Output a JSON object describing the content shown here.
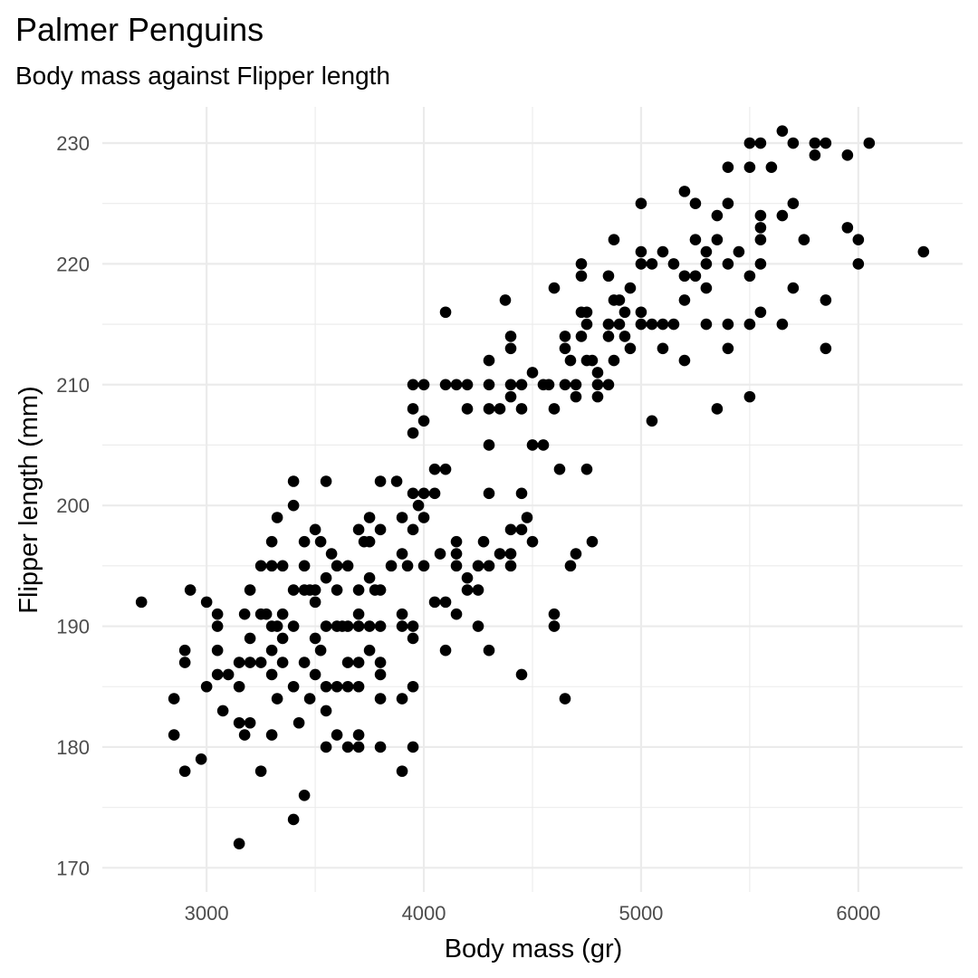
{
  "chart_data": {
    "type": "scatter",
    "title": "Palmer Penguins",
    "subtitle": "Body mass against Flipper length",
    "xlabel": "Body mass (gr)",
    "ylabel": "Flipper length (mm)",
    "xlim": [
      2520,
      6480
    ],
    "ylim": [
      168,
      233
    ],
    "x_ticks": [
      3000,
      4000,
      5000,
      6000
    ],
    "x_tick_labels": [
      "3000",
      "4000",
      "5000",
      "6000"
    ],
    "y_ticks": [
      170,
      180,
      190,
      200,
      210,
      220,
      230
    ],
    "y_tick_labels": [
      "170",
      "180",
      "190",
      "200",
      "210",
      "220",
      "230"
    ],
    "grid": true,
    "legend": "none",
    "point_color": "#000000",
    "points": [
      [
        2700,
        192
      ],
      [
        2850,
        184
      ],
      [
        2850,
        181
      ],
      [
        2900,
        188
      ],
      [
        2900,
        187
      ],
      [
        2900,
        178
      ],
      [
        2925,
        193
      ],
      [
        2975,
        179
      ],
      [
        3000,
        185
      ],
      [
        3000,
        192
      ],
      [
        3050,
        191
      ],
      [
        3050,
        190
      ],
      [
        3050,
        188
      ],
      [
        3050,
        186
      ],
      [
        3075,
        183
      ],
      [
        3100,
        186
      ],
      [
        3150,
        187
      ],
      [
        3150,
        185
      ],
      [
        3150,
        182
      ],
      [
        3150,
        172
      ],
      [
        3175,
        191
      ],
      [
        3175,
        181
      ],
      [
        3200,
        187
      ],
      [
        3200,
        182
      ],
      [
        3200,
        189
      ],
      [
        3200,
        193
      ],
      [
        3250,
        195
      ],
      [
        3250,
        191
      ],
      [
        3250,
        187
      ],
      [
        3250,
        178
      ],
      [
        3275,
        191
      ],
      [
        3300,
        195
      ],
      [
        3300,
        190
      ],
      [
        3300,
        188
      ],
      [
        3300,
        186
      ],
      [
        3300,
        181
      ],
      [
        3300,
        197
      ],
      [
        3325,
        199
      ],
      [
        3325,
        190
      ],
      [
        3325,
        184
      ],
      [
        3350,
        195
      ],
      [
        3350,
        189
      ],
      [
        3350,
        187
      ],
      [
        3350,
        191
      ],
      [
        3400,
        202
      ],
      [
        3400,
        200
      ],
      [
        3400,
        193
      ],
      [
        3400,
        190
      ],
      [
        3400,
        185
      ],
      [
        3400,
        174
      ],
      [
        3425,
        182
      ],
      [
        3450,
        197
      ],
      [
        3450,
        195
      ],
      [
        3450,
        193
      ],
      [
        3450,
        187
      ],
      [
        3450,
        176
      ],
      [
        3475,
        193
      ],
      [
        3475,
        184
      ],
      [
        3500,
        198
      ],
      [
        3500,
        193
      ],
      [
        3500,
        192
      ],
      [
        3500,
        189
      ],
      [
        3500,
        186
      ],
      [
        3525,
        197
      ],
      [
        3525,
        188
      ],
      [
        3550,
        202
      ],
      [
        3550,
        194
      ],
      [
        3550,
        190
      ],
      [
        3550,
        185
      ],
      [
        3550,
        183
      ],
      [
        3550,
        180
      ],
      [
        3575,
        196
      ],
      [
        3600,
        195
      ],
      [
        3600,
        190
      ],
      [
        3600,
        193
      ],
      [
        3600,
        185
      ],
      [
        3600,
        181
      ],
      [
        3625,
        190
      ],
      [
        3650,
        195
      ],
      [
        3650,
        190
      ],
      [
        3650,
        187
      ],
      [
        3650,
        185
      ],
      [
        3650,
        180
      ],
      [
        3700,
        198
      ],
      [
        3700,
        193
      ],
      [
        3700,
        191
      ],
      [
        3700,
        190
      ],
      [
        3700,
        187
      ],
      [
        3700,
        185
      ],
      [
        3700,
        181
      ],
      [
        3700,
        180
      ],
      [
        3725,
        197
      ],
      [
        3750,
        199
      ],
      [
        3750,
        197
      ],
      [
        3750,
        194
      ],
      [
        3750,
        190
      ],
      [
        3750,
        188
      ],
      [
        3775,
        193
      ],
      [
        3800,
        202
      ],
      [
        3800,
        198
      ],
      [
        3800,
        193
      ],
      [
        3800,
        190
      ],
      [
        3800,
        187
      ],
      [
        3800,
        186
      ],
      [
        3800,
        184
      ],
      [
        3800,
        180
      ],
      [
        3850,
        195
      ],
      [
        3875,
        202
      ],
      [
        3900,
        199
      ],
      [
        3900,
        196
      ],
      [
        3900,
        191
      ],
      [
        3900,
        190
      ],
      [
        3900,
        184
      ],
      [
        3900,
        178
      ],
      [
        3925,
        195
      ],
      [
        3950,
        210
      ],
      [
        3950,
        208
      ],
      [
        3950,
        206
      ],
      [
        3950,
        201
      ],
      [
        3950,
        198
      ],
      [
        3950,
        190
      ],
      [
        3950,
        189
      ],
      [
        3950,
        185
      ],
      [
        3950,
        180
      ],
      [
        3975,
        200
      ],
      [
        4000,
        210
      ],
      [
        4000,
        207
      ],
      [
        4000,
        201
      ],
      [
        4000,
        199
      ],
      [
        4000,
        195
      ],
      [
        4050,
        203
      ],
      [
        4050,
        201
      ],
      [
        4050,
        192
      ],
      [
        4075,
        196
      ],
      [
        4100,
        216
      ],
      [
        4100,
        210
      ],
      [
        4100,
        203
      ],
      [
        4100,
        192
      ],
      [
        4100,
        188
      ],
      [
        4150,
        210
      ],
      [
        4150,
        197
      ],
      [
        4150,
        196
      ],
      [
        4150,
        195
      ],
      [
        4150,
        191
      ],
      [
        4200,
        210
      ],
      [
        4200,
        208
      ],
      [
        4200,
        194
      ],
      [
        4200,
        193
      ],
      [
        4250,
        195
      ],
      [
        4250,
        193
      ],
      [
        4250,
        190
      ],
      [
        4275,
        197
      ],
      [
        4300,
        212
      ],
      [
        4300,
        210
      ],
      [
        4300,
        208
      ],
      [
        4300,
        205
      ],
      [
        4300,
        201
      ],
      [
        4300,
        195
      ],
      [
        4300,
        188
      ],
      [
        4350,
        208
      ],
      [
        4350,
        196
      ],
      [
        4375,
        217
      ],
      [
        4400,
        214
      ],
      [
        4400,
        213
      ],
      [
        4400,
        210
      ],
      [
        4400,
        198
      ],
      [
        4400,
        196
      ],
      [
        4400,
        195
      ],
      [
        4400,
        209
      ],
      [
        4450,
        210
      ],
      [
        4450,
        208
      ],
      [
        4450,
        201
      ],
      [
        4450,
        198
      ],
      [
        4450,
        186
      ],
      [
        4475,
        199
      ],
      [
        4500,
        211
      ],
      [
        4500,
        205
      ],
      [
        4500,
        197
      ],
      [
        4550,
        210
      ],
      [
        4550,
        205
      ],
      [
        4575,
        210
      ],
      [
        4600,
        218
      ],
      [
        4600,
        208
      ],
      [
        4600,
        191
      ],
      [
        4600,
        190
      ],
      [
        4625,
        203
      ],
      [
        4650,
        214
      ],
      [
        4650,
        213
      ],
      [
        4650,
        210
      ],
      [
        4650,
        184
      ],
      [
        4675,
        212
      ],
      [
        4675,
        195
      ],
      [
        4700,
        210
      ],
      [
        4700,
        209
      ],
      [
        4700,
        196
      ],
      [
        4725,
        220
      ],
      [
        4725,
        219
      ],
      [
        4725,
        216
      ],
      [
        4725,
        214
      ],
      [
        4750,
        216
      ],
      [
        4750,
        215
      ],
      [
        4750,
        212
      ],
      [
        4750,
        203
      ],
      [
        4775,
        212
      ],
      [
        4775,
        197
      ],
      [
        4800,
        211
      ],
      [
        4800,
        209
      ],
      [
        4800,
        210
      ],
      [
        4850,
        219
      ],
      [
        4850,
        215
      ],
      [
        4850,
        214
      ],
      [
        4850,
        210
      ],
      [
        4875,
        222
      ],
      [
        4875,
        217
      ],
      [
        4875,
        212
      ],
      [
        4900,
        217
      ],
      [
        4900,
        215
      ],
      [
        4925,
        216
      ],
      [
        4925,
        214
      ],
      [
        4950,
        218
      ],
      [
        4950,
        213
      ],
      [
        5000,
        225
      ],
      [
        5000,
        221
      ],
      [
        5000,
        220
      ],
      [
        5000,
        216
      ],
      [
        5000,
        215
      ],
      [
        5050,
        220
      ],
      [
        5050,
        215
      ],
      [
        5050,
        207
      ],
      [
        5100,
        221
      ],
      [
        5100,
        215
      ],
      [
        5100,
        213
      ],
      [
        5150,
        220
      ],
      [
        5150,
        215
      ],
      [
        5200,
        226
      ],
      [
        5200,
        219
      ],
      [
        5200,
        217
      ],
      [
        5200,
        212
      ],
      [
        5250,
        225
      ],
      [
        5250,
        222
      ],
      [
        5250,
        219
      ],
      [
        5300,
        221
      ],
      [
        5300,
        220
      ],
      [
        5300,
        218
      ],
      [
        5300,
        215
      ],
      [
        5350,
        224
      ],
      [
        5350,
        222
      ],
      [
        5350,
        208
      ],
      [
        5400,
        228
      ],
      [
        5400,
        225
      ],
      [
        5400,
        220
      ],
      [
        5400,
        215
      ],
      [
        5400,
        213
      ],
      [
        5450,
        221
      ],
      [
        5500,
        230
      ],
      [
        5500,
        228
      ],
      [
        5500,
        219
      ],
      [
        5500,
        215
      ],
      [
        5500,
        209
      ],
      [
        5550,
        230
      ],
      [
        5550,
        224
      ],
      [
        5550,
        223
      ],
      [
        5550,
        222
      ],
      [
        5550,
        220
      ],
      [
        5550,
        216
      ],
      [
        5600,
        228
      ],
      [
        5650,
        231
      ],
      [
        5650,
        224
      ],
      [
        5650,
        215
      ],
      [
        5700,
        230
      ],
      [
        5700,
        225
      ],
      [
        5700,
        218
      ],
      [
        5750,
        222
      ],
      [
        5800,
        230
      ],
      [
        5800,
        229
      ],
      [
        5850,
        230
      ],
      [
        5850,
        217
      ],
      [
        5850,
        213
      ],
      [
        5950,
        229
      ],
      [
        5950,
        223
      ],
      [
        6000,
        222
      ],
      [
        6000,
        220
      ],
      [
        6050,
        230
      ],
      [
        6300,
        221
      ]
    ]
  }
}
